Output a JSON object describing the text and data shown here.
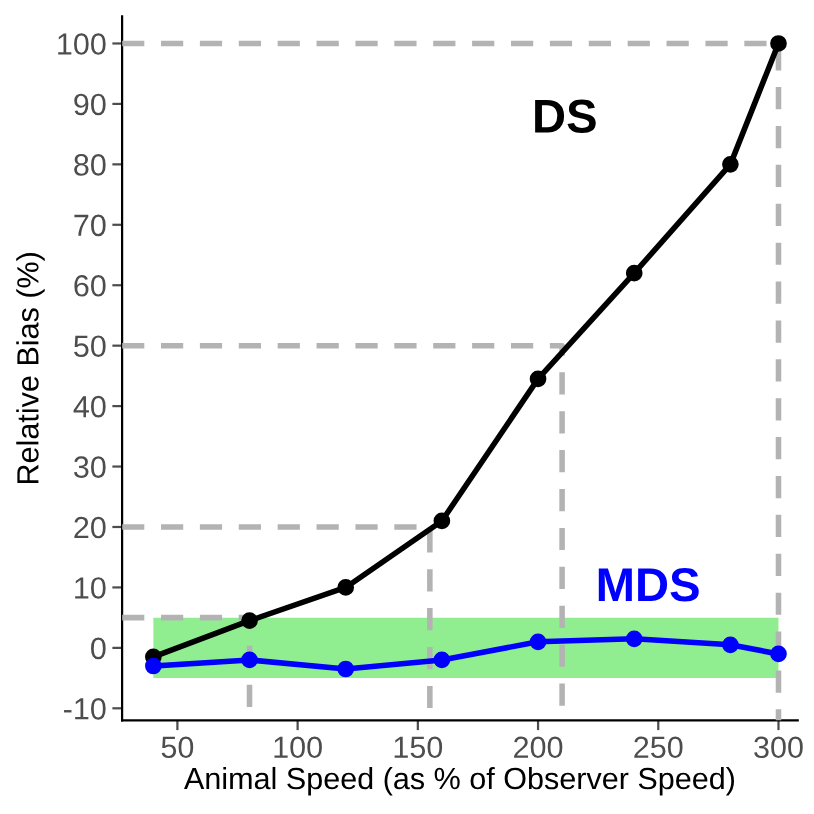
{
  "chart_data": {
    "type": "line",
    "xlabel": "Animal Speed (as % of Observer Speed)",
    "ylabel": "Relative Bias (%)",
    "xlim": [
      27,
      308
    ],
    "ylim": [
      -12,
      104.5
    ],
    "xticks": [
      50,
      100,
      150,
      200,
      250,
      300
    ],
    "yticks": [
      -10,
      0,
      10,
      20,
      30,
      40,
      50,
      60,
      70,
      80,
      90,
      100
    ],
    "grid": false,
    "legend": false,
    "marker": "circle",
    "bands": [
      {
        "axis": "y",
        "from": -5,
        "to": 5,
        "color": "#90ee90"
      }
    ],
    "series": [
      {
        "color": "#b3b3b3",
        "line_style": "dashed",
        "marker": "none",
        "x": [
          27,
          80,
          80
        ],
        "values": [
          5,
          5,
          -12
        ]
      },
      {
        "color": "#b3b3b3",
        "line_style": "dashed",
        "marker": "none",
        "x": [
          27,
          155,
          155
        ],
        "values": [
          20,
          20,
          -12
        ]
      },
      {
        "color": "#b3b3b3",
        "line_style": "dashed",
        "marker": "none",
        "x": [
          27,
          210,
          210
        ],
        "values": [
          50,
          50,
          -12
        ]
      },
      {
        "color": "#b3b3b3",
        "line_style": "dashed",
        "marker": "none",
        "x": [
          27,
          300,
          300
        ],
        "values": [
          100,
          100,
          -12
        ]
      },
      {
        "name": "DS",
        "color": "#000000",
        "line_style": "solid",
        "x": [
          40,
          80,
          120,
          160,
          200,
          240,
          280,
          300
        ],
        "values": [
          -1.5,
          4.5,
          10,
          21,
          44.5,
          62,
          80,
          100
        ]
      },
      {
        "name": "MDS",
        "color": "#0000ff",
        "line_style": "solid",
        "x": [
          40,
          80,
          120,
          160,
          200,
          240,
          280,
          300
        ],
        "values": [
          -3,
          -2,
          -3.5,
          -2,
          1,
          1.5,
          0.5,
          -1
        ]
      }
    ]
  }
}
